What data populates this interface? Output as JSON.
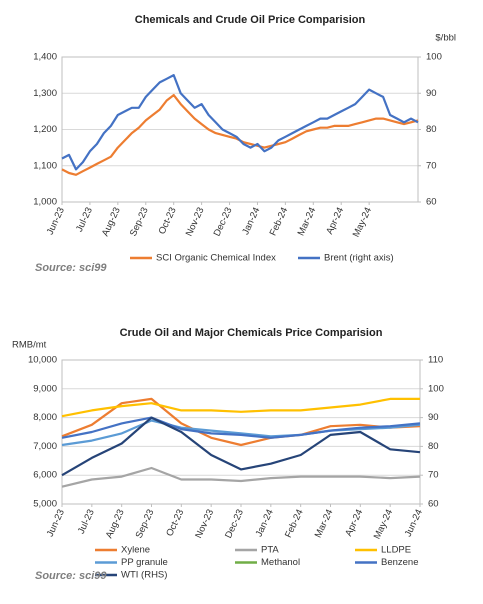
{
  "chart_data": [
    {
      "type": "line",
      "title": "Chemicals and Crude Oil Price Comparision",
      "y2_label": "$/bbl",
      "source": "Source: sci99",
      "categories": [
        "Jun-23",
        null,
        null,
        null,
        "Jul-23",
        null,
        null,
        null,
        "Aug-23",
        null,
        null,
        null,
        "Sep-23",
        null,
        null,
        null,
        "Oct-23",
        null,
        null,
        null,
        "Nov-23",
        null,
        null,
        null,
        "Dec-23",
        null,
        null,
        null,
        "Jan-24",
        null,
        null,
        null,
        "Feb-24",
        null,
        null,
        null,
        "Mar-24",
        null,
        null,
        null,
        "Apr-24",
        null,
        null,
        null,
        "May-24",
        null,
        null,
        null,
        null,
        null,
        null,
        null
      ],
      "series": [
        {
          "name": "SCI Organic Chemical Index",
          "color": "#ed7d31",
          "values": [
            1090,
            1080,
            1075,
            1085,
            1095,
            1105,
            1115,
            1125,
            1150,
            1170,
            1190,
            1205,
            1225,
            1240,
            1255,
            1280,
            1295,
            1270,
            1250,
            1230,
            1215,
            1200,
            1190,
            1185,
            1180,
            1175,
            1165,
            1160,
            1155,
            1150,
            1155,
            1160,
            1165,
            1175,
            1185,
            1195,
            1200,
            1205,
            1205,
            1210,
            1210,
            1210,
            1215,
            1220,
            1225,
            1230,
            1230,
            1225,
            1220,
            1215,
            1220,
            1225
          ]
        },
        {
          "name": "Brent (right axis)",
          "color": "#4472c4",
          "axis": "y2",
          "values": [
            72,
            73,
            69,
            71,
            74,
            76,
            79,
            81,
            84,
            85,
            86,
            86,
            89,
            91,
            93,
            94,
            95,
            90,
            88,
            86,
            87,
            84,
            82,
            80,
            79,
            78,
            76,
            75,
            76,
            74,
            75,
            77,
            78,
            79,
            80,
            81,
            82,
            83,
            83,
            84,
            85,
            86,
            87,
            89,
            91,
            90,
            89,
            84,
            83,
            82,
            83,
            82
          ]
        }
      ],
      "ylim": [
        1000,
        1400
      ],
      "yticks": [
        {
          "value": 1000,
          "label": "1,000"
        },
        {
          "value": 1100,
          "label": "1,100"
        },
        {
          "value": 1200,
          "label": "1,200"
        },
        {
          "value": 1300,
          "label": "1,300"
        },
        {
          "value": 1400,
          "label": "1,400"
        }
      ],
      "y2lim": [
        60,
        100
      ],
      "y2ticks": [
        60,
        70,
        80,
        90,
        100
      ],
      "grid": true
    },
    {
      "type": "line",
      "title": "Crude Oil and  Major Chemicals Price Comparision",
      "y_label": "RMB/mt",
      "source": "Source: sci99",
      "categories": [
        "Jun-23",
        "Jul-23",
        "Aug-23",
        "Sep-23",
        "Oct-23",
        "Nov-23",
        "Dec-23",
        "Jan-24",
        "Feb-24",
        "Mar-24",
        "Apr-24",
        "May-24",
        "Jun-24"
      ],
      "series": [
        {
          "name": "Xylene",
          "color": "#ed7d31",
          "values": [
            7350,
            7750,
            8500,
            8650,
            7800,
            7300,
            7050,
            7300,
            7400,
            7700,
            7750,
            7650,
            7700
          ]
        },
        {
          "name": "PTA",
          "color": "#a5a5a5",
          "values": [
            5600,
            5850,
            5950,
            6250,
            5850,
            5850,
            5800,
            5900,
            5950,
            5950,
            5950,
            5900,
            5950
          ]
        },
        {
          "name": "LLDPE",
          "color": "#ffc000",
          "values": [
            8050,
            8250,
            8400,
            8500,
            8250,
            8250,
            8200,
            8250,
            8250,
            8350,
            8450,
            8650,
            8650
          ]
        },
        {
          "name": "PP granule",
          "color": "#5b9bd5",
          "values": [
            7050,
            7200,
            7450,
            7900,
            7650,
            7550,
            7450,
            7350,
            7400,
            7550,
            7600,
            7650,
            7750
          ]
        },
        {
          "name": "Methanol",
          "color": "#70ad47",
          "values": [
            null,
            null,
            null,
            null,
            null,
            null,
            null,
            null,
            null,
            null,
            null,
            null,
            null
          ]
        },
        {
          "name": "Benzene",
          "color": "#4472c4",
          "values": [
            7300,
            7500,
            7800,
            8000,
            7600,
            7450,
            7400,
            7300,
            7400,
            7550,
            7650,
            7700,
            7800
          ]
        },
        {
          "name": "WTI (RHS)",
          "color": "#264478",
          "axis": "y2",
          "values": [
            70,
            76,
            81,
            90,
            85,
            77,
            72,
            74,
            77,
            84,
            85,
            79,
            78
          ]
        }
      ],
      "ylim": [
        5000,
        10000
      ],
      "yticks": [
        {
          "value": 5000,
          "label": "5,000"
        },
        {
          "value": 6000,
          "label": "6,000"
        },
        {
          "value": 7000,
          "label": "7,000"
        },
        {
          "value": 8000,
          "label": "8,000"
        },
        {
          "value": 9000,
          "label": "9,000"
        },
        {
          "value": 10000,
          "label": "10,000"
        }
      ],
      "y2lim": [
        60,
        110
      ],
      "y2ticks": [
        60,
        70,
        80,
        90,
        100,
        110
      ],
      "grid": true
    }
  ]
}
